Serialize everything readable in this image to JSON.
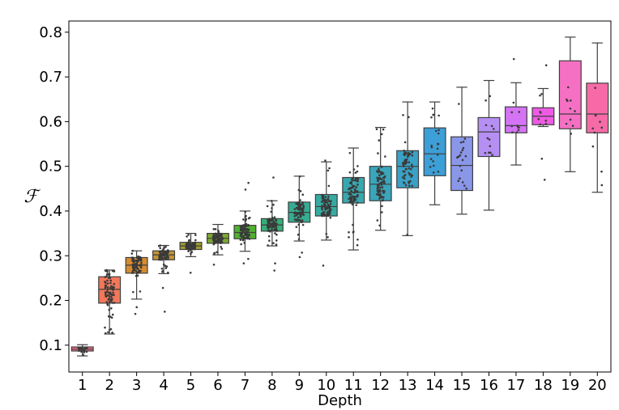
{
  "chart_data": {
    "type": "box",
    "title": "",
    "xlabel": "Depth",
    "ylabel": "ℱ",
    "ylim": [
      0.04,
      0.825
    ],
    "yticks": [
      0.1,
      0.2,
      0.3,
      0.4,
      0.5,
      0.6,
      0.7,
      0.8
    ],
    "grid": false,
    "legend": "none",
    "categories": [
      "1",
      "2",
      "3",
      "4",
      "5",
      "6",
      "7",
      "8",
      "9",
      "10",
      "11",
      "12",
      "13",
      "14",
      "15",
      "16",
      "17",
      "18",
      "19",
      "20"
    ],
    "colors": [
      "#f77189",
      "#f2775a",
      "#d58c32",
      "#c39532",
      "#a19c31",
      "#7ea831",
      "#50b131",
      "#35ae77",
      "#36ac92",
      "#37aaa1",
      "#38a7ae",
      "#3aa5bb",
      "#3ba1c6",
      "#3d9fd7",
      "#8a96e8",
      "#b68ff3",
      "#d474f4",
      "#ee5ae3",
      "#f570c3",
      "#f66ba7"
    ],
    "boxes": [
      {
        "whislo": 0.076,
        "q1": 0.087,
        "med": 0.091,
        "q3": 0.096,
        "whishi": 0.101,
        "n": 20
      },
      {
        "whislo": 0.125,
        "q1": 0.194,
        "med": 0.225,
        "q3": 0.253,
        "whishi": 0.268,
        "n": 80
      },
      {
        "whislo": 0.203,
        "q1": 0.261,
        "med": 0.279,
        "q3": 0.296,
        "whishi": 0.311,
        "n": 80
      },
      {
        "whislo": 0.26,
        "q1": 0.291,
        "med": 0.302,
        "q3": 0.311,
        "whishi": 0.323,
        "n": 80
      },
      {
        "whislo": 0.298,
        "q1": 0.314,
        "med": 0.322,
        "q3": 0.33,
        "whishi": 0.35,
        "n": 80
      },
      {
        "whislo": 0.302,
        "q1": 0.328,
        "med": 0.339,
        "q3": 0.35,
        "whishi": 0.37,
        "n": 80
      },
      {
        "whislo": 0.31,
        "q1": 0.338,
        "med": 0.352,
        "q3": 0.368,
        "whishi": 0.4,
        "n": 80
      },
      {
        "whislo": 0.322,
        "q1": 0.355,
        "med": 0.369,
        "q3": 0.383,
        "whishi": 0.423,
        "n": 80
      },
      {
        "whislo": 0.333,
        "q1": 0.375,
        "med": 0.397,
        "q3": 0.42,
        "whishi": 0.478,
        "n": 80
      },
      {
        "whislo": 0.335,
        "q1": 0.389,
        "med": 0.41,
        "q3": 0.437,
        "whishi": 0.51,
        "n": 80
      },
      {
        "whislo": 0.313,
        "q1": 0.418,
        "med": 0.442,
        "q3": 0.475,
        "whishi": 0.541,
        "n": 80
      },
      {
        "whislo": 0.357,
        "q1": 0.423,
        "med": 0.46,
        "q3": 0.5,
        "whishi": 0.587,
        "n": 80
      },
      {
        "whislo": 0.345,
        "q1": 0.452,
        "med": 0.5,
        "q3": 0.535,
        "whishi": 0.644,
        "n": 60
      },
      {
        "whislo": 0.414,
        "q1": 0.479,
        "med": 0.528,
        "q3": 0.586,
        "whishi": 0.644,
        "n": 20
      },
      {
        "whislo": 0.393,
        "q1": 0.446,
        "med": 0.502,
        "q3": 0.566,
        "whishi": 0.677,
        "n": 20
      },
      {
        "whislo": 0.402,
        "q1": 0.522,
        "med": 0.577,
        "q3": 0.609,
        "whishi": 0.692,
        "n": 12
      },
      {
        "whislo": 0.503,
        "q1": 0.575,
        "med": 0.591,
        "q3": 0.633,
        "whishi": 0.687,
        "n": 10
      },
      {
        "whislo": 0.589,
        "q1": 0.593,
        "med": 0.612,
        "q3": 0.631,
        "whishi": 0.674,
        "n": 8
      },
      {
        "whislo": 0.488,
        "q1": 0.584,
        "med": 0.617,
        "q3": 0.736,
        "whishi": 0.789,
        "n": 10
      },
      {
        "whislo": 0.442,
        "q1": 0.575,
        "med": 0.617,
        "q3": 0.686,
        "whishi": 0.776,
        "n": 10
      }
    ],
    "outliers": [
      [],
      [],
      [
        0.17,
        0.185
      ],
      [
        0.175,
        0.228
      ],
      [
        0.262
      ],
      [
        0.28
      ],
      [
        0.283,
        0.293,
        0.448,
        0.463
      ],
      [
        0.267,
        0.283,
        0.475
      ],
      [
        0.297,
        0.307
      ],
      [
        0.278,
        0.513
      ],
      [],
      [],
      [],
      [],
      [],
      [],
      [
        0.74
      ],
      [
        0.47,
        0.517,
        0.726
      ],
      [],
      []
    ]
  }
}
